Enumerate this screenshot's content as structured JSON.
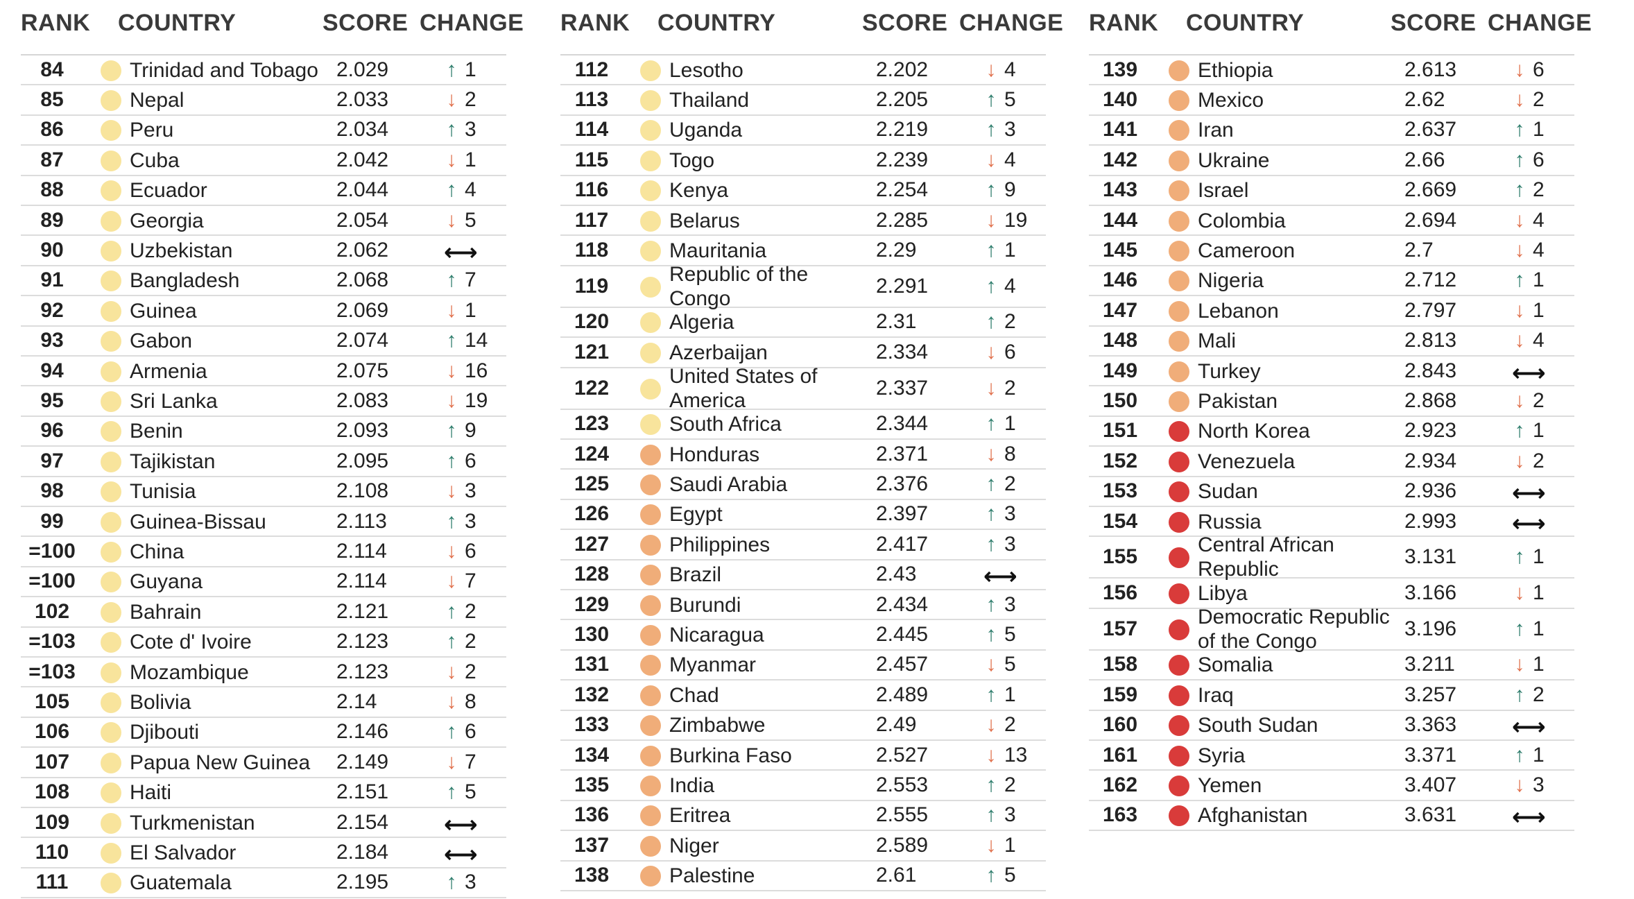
{
  "headers": {
    "rank": "RANK",
    "country": "COUNTRY",
    "score": "SCORE",
    "change": "CHANGE"
  },
  "colors": {
    "yellow": "#f8e49c",
    "orange": "#f0ad79",
    "red": "#d93b3a",
    "up": "#2e7d6c",
    "down": "#e0704c"
  },
  "chart_data": {
    "type": "table",
    "columns": [
      "RANK",
      "COUNTRY",
      "SCORE",
      "CHANGE"
    ],
    "panels": [
      [
        {
          "rank": "84",
          "country": "Trinidad and Tobago",
          "score": "2.029",
          "dir": "up",
          "change": "1",
          "color": "yellow"
        },
        {
          "rank": "85",
          "country": "Nepal",
          "score": "2.033",
          "dir": "down",
          "change": "2",
          "color": "yellow"
        },
        {
          "rank": "86",
          "country": "Peru",
          "score": "2.034",
          "dir": "up",
          "change": "3",
          "color": "yellow"
        },
        {
          "rank": "87",
          "country": "Cuba",
          "score": "2.042",
          "dir": "down",
          "change": "1",
          "color": "yellow"
        },
        {
          "rank": "88",
          "country": "Ecuador",
          "score": "2.044",
          "dir": "up",
          "change": "4",
          "color": "yellow"
        },
        {
          "rank": "89",
          "country": "Georgia",
          "score": "2.054",
          "dir": "down",
          "change": "5",
          "color": "yellow"
        },
        {
          "rank": "90",
          "country": "Uzbekistan",
          "score": "2.062",
          "dir": "same",
          "change": "",
          "color": "yellow"
        },
        {
          "rank": "91",
          "country": "Bangladesh",
          "score": "2.068",
          "dir": "up",
          "change": "7",
          "color": "yellow"
        },
        {
          "rank": "92",
          "country": "Guinea",
          "score": "2.069",
          "dir": "down",
          "change": "1",
          "color": "yellow"
        },
        {
          "rank": "93",
          "country": "Gabon",
          "score": "2.074",
          "dir": "up",
          "change": "14",
          "color": "yellow"
        },
        {
          "rank": "94",
          "country": "Armenia",
          "score": "2.075",
          "dir": "down",
          "change": "16",
          "color": "yellow"
        },
        {
          "rank": "95",
          "country": "Sri Lanka",
          "score": "2.083",
          "dir": "down",
          "change": "19",
          "color": "yellow"
        },
        {
          "rank": "96",
          "country": "Benin",
          "score": "2.093",
          "dir": "up",
          "change": "9",
          "color": "yellow"
        },
        {
          "rank": "97",
          "country": "Tajikistan",
          "score": "2.095",
          "dir": "up",
          "change": "6",
          "color": "yellow"
        },
        {
          "rank": "98",
          "country": "Tunisia",
          "score": "2.108",
          "dir": "down",
          "change": "3",
          "color": "yellow"
        },
        {
          "rank": "99",
          "country": "Guinea-Bissau",
          "score": "2.113",
          "dir": "up",
          "change": "3",
          "color": "yellow"
        },
        {
          "rank": "=100",
          "country": "China",
          "score": "2.114",
          "dir": "down",
          "change": "6",
          "color": "yellow"
        },
        {
          "rank": "=100",
          "country": "Guyana",
          "score": "2.114",
          "dir": "down",
          "change": "7",
          "color": "yellow"
        },
        {
          "rank": "102",
          "country": "Bahrain",
          "score": "2.121",
          "dir": "up",
          "change": "2",
          "color": "yellow"
        },
        {
          "rank": "=103",
          "country": "Cote d' Ivoire",
          "score": "2.123",
          "dir": "up",
          "change": "2",
          "color": "yellow"
        },
        {
          "rank": "=103",
          "country": "Mozambique",
          "score": "2.123",
          "dir": "down",
          "change": "2",
          "color": "yellow"
        },
        {
          "rank": "105",
          "country": "Bolivia",
          "score": "2.14",
          "dir": "down",
          "change": "8",
          "color": "yellow"
        },
        {
          "rank": "106",
          "country": "Djibouti",
          "score": "2.146",
          "dir": "up",
          "change": "6",
          "color": "yellow"
        },
        {
          "rank": "107",
          "country": "Papua New Guinea",
          "score": "2.149",
          "dir": "down",
          "change": "7",
          "color": "yellow"
        },
        {
          "rank": "108",
          "country": "Haiti",
          "score": "2.151",
          "dir": "up",
          "change": "5",
          "color": "yellow"
        },
        {
          "rank": "109",
          "country": "Turkmenistan",
          "score": "2.154",
          "dir": "same",
          "change": "",
          "color": "yellow"
        },
        {
          "rank": "110",
          "country": "El Salvador",
          "score": "2.184",
          "dir": "same",
          "change": "",
          "color": "yellow"
        },
        {
          "rank": "111",
          "country": "Guatemala",
          "score": "2.195",
          "dir": "up",
          "change": "3",
          "color": "yellow"
        }
      ],
      [
        {
          "rank": "112",
          "country": "Lesotho",
          "score": "2.202",
          "dir": "down",
          "change": "4",
          "color": "yellow"
        },
        {
          "rank": "113",
          "country": "Thailand",
          "score": "2.205",
          "dir": "up",
          "change": "5",
          "color": "yellow"
        },
        {
          "rank": "114",
          "country": "Uganda",
          "score": "2.219",
          "dir": "up",
          "change": "3",
          "color": "yellow"
        },
        {
          "rank": "115",
          "country": "Togo",
          "score": "2.239",
          "dir": "down",
          "change": "4",
          "color": "yellow"
        },
        {
          "rank": "116",
          "country": "Kenya",
          "score": "2.254",
          "dir": "up",
          "change": "9",
          "color": "yellow"
        },
        {
          "rank": "117",
          "country": "Belarus",
          "score": "2.285",
          "dir": "down",
          "change": "19",
          "color": "yellow"
        },
        {
          "rank": "118",
          "country": "Mauritania",
          "score": "2.29",
          "dir": "up",
          "change": "1",
          "color": "yellow"
        },
        {
          "rank": "119",
          "country": "Republic of the Congo",
          "score": "2.291",
          "dir": "up",
          "change": "4",
          "color": "yellow",
          "tall": true
        },
        {
          "rank": "120",
          "country": "Algeria",
          "score": "2.31",
          "dir": "up",
          "change": "2",
          "color": "yellow"
        },
        {
          "rank": "121",
          "country": "Azerbaijan",
          "score": "2.334",
          "dir": "down",
          "change": "6",
          "color": "yellow"
        },
        {
          "rank": "122",
          "country": "United States of America",
          "score": "2.337",
          "dir": "down",
          "change": "2",
          "color": "yellow",
          "tall": true
        },
        {
          "rank": "123",
          "country": "South Africa",
          "score": "2.344",
          "dir": "up",
          "change": "1",
          "color": "yellow"
        },
        {
          "rank": "124",
          "country": "Honduras",
          "score": "2.371",
          "dir": "down",
          "change": "8",
          "color": "orange"
        },
        {
          "rank": "125",
          "country": "Saudi Arabia",
          "score": "2.376",
          "dir": "up",
          "change": "2",
          "color": "orange"
        },
        {
          "rank": "126",
          "country": "Egypt",
          "score": "2.397",
          "dir": "up",
          "change": "3",
          "color": "orange"
        },
        {
          "rank": "127",
          "country": "Philippines",
          "score": "2.417",
          "dir": "up",
          "change": "3",
          "color": "orange"
        },
        {
          "rank": "128",
          "country": "Brazil",
          "score": "2.43",
          "dir": "same",
          "change": "",
          "color": "orange"
        },
        {
          "rank": "129",
          "country": "Burundi",
          "score": "2.434",
          "dir": "up",
          "change": "3",
          "color": "orange"
        },
        {
          "rank": "130",
          "country": "Nicaragua",
          "score": "2.445",
          "dir": "up",
          "change": "5",
          "color": "orange"
        },
        {
          "rank": "131",
          "country": "Myanmar",
          "score": "2.457",
          "dir": "down",
          "change": "5",
          "color": "orange"
        },
        {
          "rank": "132",
          "country": "Chad",
          "score": "2.489",
          "dir": "up",
          "change": "1",
          "color": "orange"
        },
        {
          "rank": "133",
          "country": "Zimbabwe",
          "score": "2.49",
          "dir": "down",
          "change": "2",
          "color": "orange"
        },
        {
          "rank": "134",
          "country": "Burkina Faso",
          "score": "2.527",
          "dir": "down",
          "change": "13",
          "color": "orange"
        },
        {
          "rank": "135",
          "country": "India",
          "score": "2.553",
          "dir": "up",
          "change": "2",
          "color": "orange"
        },
        {
          "rank": "136",
          "country": "Eritrea",
          "score": "2.555",
          "dir": "up",
          "change": "3",
          "color": "orange"
        },
        {
          "rank": "137",
          "country": "Niger",
          "score": "2.589",
          "dir": "down",
          "change": "1",
          "color": "orange"
        },
        {
          "rank": "138",
          "country": "Palestine",
          "score": "2.61",
          "dir": "up",
          "change": "5",
          "color": "orange"
        }
      ],
      [
        {
          "rank": "139",
          "country": "Ethiopia",
          "score": "2.613",
          "dir": "down",
          "change": "6",
          "color": "orange"
        },
        {
          "rank": "140",
          "country": "Mexico",
          "score": "2.62",
          "dir": "down",
          "change": "2",
          "color": "orange"
        },
        {
          "rank": "141",
          "country": "Iran",
          "score": "2.637",
          "dir": "up",
          "change": "1",
          "color": "orange"
        },
        {
          "rank": "142",
          "country": "Ukraine",
          "score": "2.66",
          "dir": "up",
          "change": "6",
          "color": "orange"
        },
        {
          "rank": "143",
          "country": "Israel",
          "score": "2.669",
          "dir": "up",
          "change": "2",
          "color": "orange"
        },
        {
          "rank": "144",
          "country": "Colombia",
          "score": "2.694",
          "dir": "down",
          "change": "4",
          "color": "orange"
        },
        {
          "rank": "145",
          "country": "Cameroon",
          "score": "2.7",
          "dir": "down",
          "change": "4",
          "color": "orange"
        },
        {
          "rank": "146",
          "country": "Nigeria",
          "score": "2.712",
          "dir": "up",
          "change": "1",
          "color": "orange"
        },
        {
          "rank": "147",
          "country": "Lebanon",
          "score": "2.797",
          "dir": "down",
          "change": "1",
          "color": "orange"
        },
        {
          "rank": "148",
          "country": "Mali",
          "score": "2.813",
          "dir": "down",
          "change": "4",
          "color": "orange"
        },
        {
          "rank": "149",
          "country": "Turkey",
          "score": "2.843",
          "dir": "same",
          "change": "",
          "color": "orange"
        },
        {
          "rank": "150",
          "country": "Pakistan",
          "score": "2.868",
          "dir": "down",
          "change": "2",
          "color": "orange"
        },
        {
          "rank": "151",
          "country": "North Korea",
          "score": "2.923",
          "dir": "up",
          "change": "1",
          "color": "red"
        },
        {
          "rank": "152",
          "country": "Venezuela",
          "score": "2.934",
          "dir": "down",
          "change": "2",
          "color": "red"
        },
        {
          "rank": "153",
          "country": "Sudan",
          "score": "2.936",
          "dir": "same",
          "change": "",
          "color": "red"
        },
        {
          "rank": "154",
          "country": "Russia",
          "score": "2.993",
          "dir": "same",
          "change": "",
          "color": "red"
        },
        {
          "rank": "155",
          "country": "Central African Republic",
          "score": "3.131",
          "dir": "up",
          "change": "1",
          "color": "red",
          "tall": true
        },
        {
          "rank": "156",
          "country": "Libya",
          "score": "3.166",
          "dir": "down",
          "change": "1",
          "color": "red"
        },
        {
          "rank": "157",
          "country": "Democratic Republic of the Congo",
          "score": "3.196",
          "dir": "up",
          "change": "1",
          "color": "red",
          "tall": true
        },
        {
          "rank": "158",
          "country": "Somalia",
          "score": "3.211",
          "dir": "down",
          "change": "1",
          "color": "red"
        },
        {
          "rank": "159",
          "country": "Iraq",
          "score": "3.257",
          "dir": "up",
          "change": "2",
          "color": "red"
        },
        {
          "rank": "160",
          "country": "South Sudan",
          "score": "3.363",
          "dir": "same",
          "change": "",
          "color": "red"
        },
        {
          "rank": "161",
          "country": "Syria",
          "score": "3.371",
          "dir": "up",
          "change": "1",
          "color": "red"
        },
        {
          "rank": "162",
          "country": "Yemen",
          "score": "3.407",
          "dir": "down",
          "change": "3",
          "color": "red"
        },
        {
          "rank": "163",
          "country": "Afghanistan",
          "score": "3.631",
          "dir": "same",
          "change": "",
          "color": "red"
        }
      ]
    ]
  }
}
